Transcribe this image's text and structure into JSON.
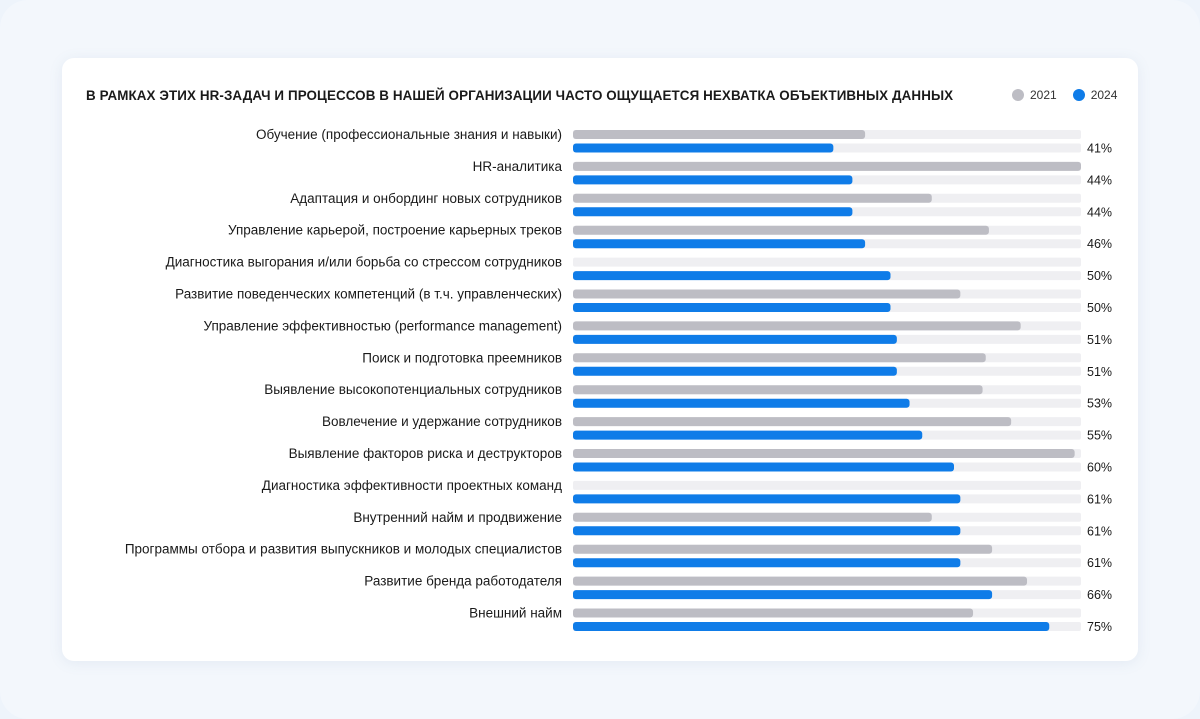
{
  "chart_data": {
    "type": "bar",
    "title": "В РАМКАХ ЭТИХ HR-ЗАДАЧ И ПРОЦЕССОВ В НАШЕЙ ОРГАНИЗАЦИИ ЧАСТО ОЩУЩАЕТСЯ НЕХВАТКА ОБЪЕКТИВНЫХ ДАННЫХ",
    "xlim": [
      0,
      80
    ],
    "legend_position": "top-right",
    "categories": [
      "Обучение (профессиональные знания и навыки)",
      "HR-аналитика",
      "Адаптация и онбординг новых сотрудников",
      "Управление карьерой, построение карьерных треков",
      "Диагностика выгорания и/или борьба со стрессом сотрудников",
      "Развитие поведенческих компетенций (в т.ч. управленческих)",
      "Управление эффективностью (performance management)",
      "Поиск и подготовка преемников",
      "Выявление высокопотенциальных сотрудников",
      "Вовлечение и удержание сотрудников",
      "Выявление факторов риска и деструкторов",
      "Диагностика эффективности проектных команд",
      "Внутренний найм и продвижение",
      "Программы отбора и развития выпускников и молодых специалистов",
      "Развитие бренда работодателя",
      "Внешний найм"
    ],
    "series": [
      {
        "name": "2021",
        "color": "#bdbdc4",
        "values": [
          46,
          80,
          56.5,
          65.5,
          null,
          61,
          70.5,
          65,
          64.5,
          69,
          79,
          null,
          56.5,
          66,
          71.5,
          63
        ]
      },
      {
        "name": "2024",
        "color": "#0f7ce8",
        "values": [
          41,
          44,
          44,
          46,
          50,
          50,
          51,
          51,
          53,
          55,
          60,
          61,
          61,
          61,
          66,
          75
        ]
      }
    ],
    "value_labels": [
      "41%",
      "44%",
      "44%",
      "46%",
      "50%",
      "50%",
      "51%",
      "51%",
      "53%",
      "55%",
      "60%",
      "61%",
      "61%",
      "61%",
      "66%",
      "75%"
    ],
    "track_color": "#efeff2"
  }
}
